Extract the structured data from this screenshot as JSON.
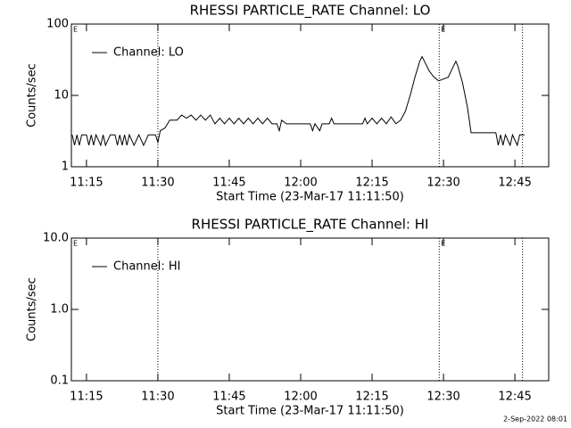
{
  "chart_data": [
    {
      "type": "line",
      "title": "RHESSI PARTICLE_RATE Channel: LO",
      "xlabel": "Start Time (23-Mar-17 11:11:50)",
      "ylabel": "Counts/sec",
      "log_y": true,
      "ylim": [
        1,
        100
      ],
      "yticks": [
        1,
        10,
        100
      ],
      "xlim": [
        671.83,
        772.1
      ],
      "xticks": [
        {
          "value": 675,
          "label": "11:15"
        },
        {
          "value": 690,
          "label": "11:30"
        },
        {
          "value": 705,
          "label": "11:45"
        },
        {
          "value": 720,
          "label": "12:00"
        },
        {
          "value": 735,
          "label": "12:15"
        },
        {
          "value": 750,
          "label": "12:30"
        },
        {
          "value": 765,
          "label": "12:45"
        }
      ],
      "vlines": [
        690,
        749.1,
        766.6
      ],
      "annotations": [
        {
          "text": "E",
          "x": 671.83
        },
        {
          "text": "E",
          "x": 749.1
        }
      ],
      "legend": "upper left",
      "series": [
        {
          "name": "Channel: LO",
          "color": "#000000",
          "x": [
            672,
            672.5,
            673,
            673.5,
            674,
            675,
            675.5,
            676,
            676.5,
            677,
            678,
            678.5,
            679,
            680,
            681,
            681.5,
            682,
            682.5,
            683,
            683.5,
            684,
            685,
            686,
            687,
            688,
            689.5,
            690,
            690.5,
            691.5,
            692.5,
            694,
            695,
            696,
            697,
            698,
            699,
            700,
            701,
            702,
            703,
            704,
            705,
            706,
            707,
            708,
            709,
            710,
            711,
            712,
            713,
            714,
            715,
            715.5,
            716,
            717,
            722,
            722.5,
            723,
            724,
            724.5,
            726,
            726.5,
            727,
            733,
            733.5,
            734,
            735,
            736,
            737,
            738,
            739,
            740,
            741,
            742,
            743,
            744,
            745,
            745.5,
            746,
            747,
            748,
            749,
            750,
            751,
            752,
            752.6,
            753,
            754,
            755,
            755.8,
            761,
            761.5,
            762,
            762.5,
            763,
            764,
            764.5,
            765.5,
            766,
            767
          ],
          "values": [
            2.8,
            2,
            2.8,
            2,
            2.8,
            2.8,
            2,
            2.8,
            2,
            2.8,
            2,
            2.8,
            2,
            2.8,
            2.8,
            2,
            2.8,
            2,
            2.8,
            2,
            2.8,
            2,
            2.8,
            2,
            2.8,
            2.8,
            2.2,
            3.2,
            3.5,
            4.5,
            4.5,
            5.3,
            4.8,
            5.3,
            4.5,
            5.3,
            4.5,
            5.3,
            4,
            4.8,
            4,
            4.8,
            4,
            4.8,
            4,
            4.8,
            4,
            4.8,
            4,
            4.8,
            4,
            4,
            3.2,
            4.5,
            4,
            4,
            3.2,
            4,
            3.2,
            4,
            4,
            4.8,
            4,
            4,
            4.8,
            4,
            4.8,
            4,
            4.8,
            4,
            5,
            4,
            4.5,
            6,
            10,
            18,
            30,
            35,
            30,
            22,
            18,
            16,
            17,
            18,
            25,
            30,
            26,
            15,
            7,
            3,
            3,
            2,
            2.8,
            2,
            2.8,
            2,
            2.8,
            2,
            2.8,
            2.8
          ]
        }
      ]
    },
    {
      "type": "line",
      "title": "RHESSI PARTICLE_RATE Channel: HI",
      "xlabel": "Start Time (23-Mar-17 11:11:50)",
      "ylabel": "Counts/sec",
      "log_y": true,
      "ylim": [
        0.1,
        10
      ],
      "yticks": [
        0.1,
        {
          "value": 1,
          "label": "1.0"
        },
        {
          "value": 10,
          "label": "10.0"
        }
      ],
      "xlim": [
        671.83,
        772.1
      ],
      "xticks": [
        {
          "value": 675,
          "label": "11:15"
        },
        {
          "value": 690,
          "label": "11:30"
        },
        {
          "value": 705,
          "label": "11:45"
        },
        {
          "value": 720,
          "label": "12:00"
        },
        {
          "value": 735,
          "label": "12:15"
        },
        {
          "value": 750,
          "label": "12:30"
        },
        {
          "value": 765,
          "label": "12:45"
        }
      ],
      "vlines": [
        690,
        749.1,
        766.6
      ],
      "annotations": [
        {
          "text": "E",
          "x": 671.83
        },
        {
          "text": "E",
          "x": 749.1
        }
      ],
      "legend": "upper left",
      "series": [
        {
          "name": "Channel: HI",
          "color": "#000000",
          "x": [],
          "values": []
        }
      ]
    }
  ],
  "footer": "2-Sep-2022 08:01"
}
